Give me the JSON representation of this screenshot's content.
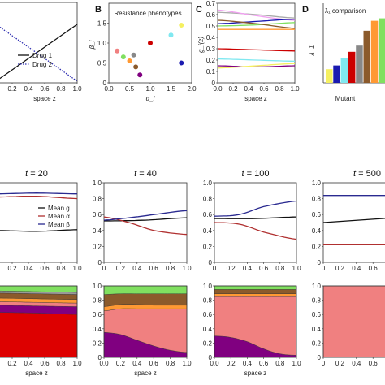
{
  "panel_letters": [
    "B",
    "C",
    "D"
  ],
  "chart_data": [
    {
      "id": "A",
      "type": "line",
      "xlabel": "space z",
      "xlim": [
        0,
        1
      ],
      "x_ticks": [
        "0.2",
        "0.4",
        "0.6",
        "0.8",
        "1.0"
      ],
      "series": [
        {
          "name": "Drug 1",
          "style": "solid",
          "color": "#111111",
          "x": [
            0,
            1
          ],
          "y": [
            0.0,
            1.0
          ]
        },
        {
          "name": "Drug 2",
          "style": "dotted",
          "color": "#2c2cb0",
          "x": [
            0,
            1
          ],
          "y": [
            1.0,
            0.0
          ]
        }
      ]
    },
    {
      "id": "B",
      "type": "scatter",
      "annotation": "Resistance phenotypes",
      "xlabel": "α_i",
      "ylabel": "β_i",
      "xlim": [
        0,
        2
      ],
      "ylim": [
        0,
        2
      ],
      "x_ticks": [
        "0.0",
        "0.5",
        "1.0",
        "1.5",
        "2.0"
      ],
      "y_ticks": [
        "0",
        "0.5",
        "1.0",
        "1.5"
      ],
      "points": [
        {
          "x": 0.2,
          "y": 0.8,
          "color": "#f08080"
        },
        {
          "x": 0.35,
          "y": 0.65,
          "color": "#80e060"
        },
        {
          "x": 0.5,
          "y": 0.55,
          "color": "#ff9933"
        },
        {
          "x": 0.6,
          "y": 0.7,
          "color": "#888888"
        },
        {
          "x": 0.65,
          "y": 0.4,
          "color": "#8b5a2b"
        },
        {
          "x": 0.75,
          "y": 0.2,
          "color": "#800080"
        },
        {
          "x": 1.0,
          "y": 1.0,
          "color": "#cc0000"
        },
        {
          "x": 1.5,
          "y": 1.2,
          "color": "#80e8f0"
        },
        {
          "x": 1.75,
          "y": 0.5,
          "color": "#1a1ab0"
        },
        {
          "x": 1.75,
          "y": 1.45,
          "color": "#f5f060"
        }
      ]
    },
    {
      "id": "C",
      "type": "line",
      "xlabel": "space z",
      "ylabel": "g_i(z)",
      "xlim": [
        0,
        1
      ],
      "ylim": [
        0,
        0.7
      ],
      "x_ticks": [
        "0.0",
        "0.2",
        "0.4",
        "0.6",
        "0.8",
        "1.0"
      ],
      "y_ticks": [
        "0",
        "0.1",
        "0.2",
        "0.3",
        "0.4",
        "0.5",
        "0.6",
        "0.7"
      ],
      "series": [
        {
          "color": "#aaaaaa",
          "x": [
            0,
            0.5,
            1
          ],
          "y": [
            0.62,
            0.6,
            0.57
          ]
        },
        {
          "color": "#f0a0f0",
          "x": [
            0,
            0.5,
            1
          ],
          "y": [
            0.64,
            0.59,
            0.55
          ]
        },
        {
          "color": "#1a1ab0",
          "x": [
            0,
            0.5,
            1
          ],
          "y": [
            0.52,
            0.54,
            0.56
          ]
        },
        {
          "color": "#80e060",
          "x": [
            0,
            0.5,
            1
          ],
          "y": [
            0.5,
            0.51,
            0.53
          ]
        },
        {
          "color": "#8b5a2b",
          "x": [
            0,
            0.5,
            1
          ],
          "y": [
            0.55,
            0.52,
            0.48
          ]
        },
        {
          "color": "#ff9933",
          "x": [
            0,
            0.5,
            1
          ],
          "y": [
            0.47,
            0.47,
            0.47
          ]
        },
        {
          "color": "#cc0000",
          "x": [
            0,
            0.5,
            1
          ],
          "y": [
            0.3,
            0.29,
            0.28
          ]
        },
        {
          "color": "#80e8f0",
          "x": [
            0,
            0.5,
            1
          ],
          "y": [
            0.21,
            0.2,
            0.19
          ]
        },
        {
          "color": "#800080",
          "x": [
            0,
            0.5,
            1
          ],
          "y": [
            0.15,
            0.14,
            0.15
          ]
        },
        {
          "color": "#f5f060",
          "x": [
            0,
            0.5,
            1
          ],
          "y": [
            0.13,
            0.15,
            0.17
          ]
        }
      ]
    },
    {
      "id": "D",
      "type": "bar",
      "title": "λ₁ comparison",
      "xlabel": "Mutant",
      "ylabel": "λ_1",
      "values": [
        0.11,
        0.14,
        0.2,
        0.25,
        0.3,
        0.42,
        0.5,
        0.52
      ],
      "colors": [
        "#f5f060",
        "#1a1ab0",
        "#80e8f0",
        "#cc0000",
        "#888888",
        "#8b5a2b",
        "#ff9933",
        "#80e060"
      ],
      "ylim": [
        0,
        0.55
      ]
    },
    {
      "id": "t20",
      "type": "line",
      "title_prefix": "t",
      "title_value": "= 20",
      "xlabel": "space z",
      "xlim": [
        0,
        1
      ],
      "ylim": [
        0,
        1
      ],
      "x_ticks": [
        "0.2",
        "0.4",
        "0.6",
        "0.8",
        "1.0"
      ],
      "legend": [
        "Mean g",
        "Mean α",
        "Mean β"
      ],
      "series": [
        {
          "name": "Mean g",
          "color": "#111111",
          "x": [
            0,
            0.5,
            1
          ],
          "y": [
            0.4,
            0.39,
            0.41
          ]
        },
        {
          "name": "Mean α",
          "color": "#b03030",
          "x": [
            0,
            0.5,
            1
          ],
          "y": [
            0.82,
            0.83,
            0.8
          ]
        },
        {
          "name": "Mean β",
          "color": "#2a2a90",
          "x": [
            0,
            0.5,
            1
          ],
          "y": [
            0.86,
            0.87,
            0.86
          ]
        }
      ]
    },
    {
      "id": "t40",
      "type": "line",
      "title_prefix": "t",
      "title_value": "= 40",
      "xlim": [
        0,
        1
      ],
      "ylim": [
        0,
        1
      ],
      "x_ticks": [
        "0",
        "0.2",
        "0.4",
        "0.6",
        "0.8",
        "1.0"
      ],
      "y_ticks": [
        "0",
        "0.2",
        "0.4",
        "0.6",
        "0.8",
        "1.0"
      ],
      "series": [
        {
          "name": "Mean g",
          "color": "#111111",
          "x": [
            0,
            0.5,
            1
          ],
          "y": [
            0.52,
            0.53,
            0.56
          ]
        },
        {
          "name": "Mean α",
          "color": "#b03030",
          "x": [
            0,
            0.3,
            0.6,
            1
          ],
          "y": [
            0.57,
            0.5,
            0.4,
            0.35
          ]
        },
        {
          "name": "Mean β",
          "color": "#2a2a90",
          "x": [
            0,
            0.3,
            0.6,
            1
          ],
          "y": [
            0.53,
            0.56,
            0.6,
            0.65
          ]
        }
      ]
    },
    {
      "id": "t100",
      "type": "line",
      "title_prefix": "t",
      "title_value": "= 100",
      "xlim": [
        0,
        1
      ],
      "ylim": [
        0,
        1
      ],
      "x_ticks": [
        "0",
        "0.2",
        "0.4",
        "0.6",
        "0.8",
        "1.0"
      ],
      "y_ticks": [
        "0",
        "0.2",
        "0.4",
        "0.6",
        "0.8",
        "1.0"
      ],
      "series": [
        {
          "name": "Mean g",
          "color": "#111111",
          "x": [
            0,
            0.5,
            1
          ],
          "y": [
            0.55,
            0.55,
            0.57
          ]
        },
        {
          "name": "Mean α",
          "color": "#b03030",
          "x": [
            0,
            0.3,
            0.6,
            1
          ],
          "y": [
            0.5,
            0.48,
            0.38,
            0.29
          ]
        },
        {
          "name": "Mean β",
          "color": "#2a2a90",
          "x": [
            0,
            0.3,
            0.6,
            1
          ],
          "y": [
            0.58,
            0.6,
            0.7,
            0.77
          ]
        }
      ]
    },
    {
      "id": "t500",
      "type": "line",
      "title_prefix": "t",
      "title_value": "= 500",
      "xlim": [
        0,
        1
      ],
      "ylim": [
        0,
        1
      ],
      "x_ticks": [
        "0",
        "0.2",
        "0.4",
        "0.6"
      ],
      "y_ticks": [
        "0",
        "0.2",
        "0.4",
        "0.6",
        "0.8",
        "1.0"
      ],
      "series": [
        {
          "name": "Mean g",
          "color": "#111111",
          "x": [
            0,
            1
          ],
          "y": [
            0.5,
            0.57
          ]
        },
        {
          "name": "Mean α",
          "color": "#b03030",
          "x": [
            0,
            1
          ],
          "y": [
            0.22,
            0.22
          ]
        },
        {
          "name": "Mean β",
          "color": "#2a2a90",
          "x": [
            0,
            1
          ],
          "y": [
            0.84,
            0.84
          ]
        }
      ]
    },
    {
      "id": "s20",
      "type": "area",
      "xlabel": "space z",
      "x_ticks": [
        "0.2",
        "0.4",
        "0.6",
        "0.8",
        "1.0"
      ],
      "x": [
        0,
        0.5,
        1
      ],
      "layers": [
        {
          "color": "#dd0000",
          "values": [
            0.63,
            0.62,
            0.6
          ]
        },
        {
          "color": "#800080",
          "values": [
            0.1,
            0.1,
            0.11
          ]
        },
        {
          "color": "#f08080",
          "values": [
            0.05,
            0.05,
            0.05
          ]
        },
        {
          "color": "#ff9933",
          "values": [
            0.05,
            0.05,
            0.05
          ]
        },
        {
          "color": "#8b5a2b",
          "values": [
            0.07,
            0.07,
            0.07
          ]
        },
        {
          "color": "#999999",
          "values": [
            0.03,
            0.03,
            0.03
          ]
        },
        {
          "color": "#80e060",
          "values": [
            0.07,
            0.08,
            0.09
          ]
        }
      ]
    },
    {
      "id": "s40",
      "type": "area",
      "xlabel": "space z",
      "x_ticks": [
        "0.0",
        "0.2",
        "0.4",
        "0.6",
        "0.8",
        "1.0"
      ],
      "y_ticks": [
        "0",
        "0.2",
        "0.4",
        "0.6",
        "0.8",
        "1.0"
      ],
      "x": [
        0,
        0.2,
        0.4,
        0.6,
        0.8,
        1
      ],
      "layers": [
        {
          "color": "#800080",
          "values": [
            0.35,
            0.32,
            0.24,
            0.16,
            0.1,
            0.07
          ]
        },
        {
          "color": "#f08080",
          "values": [
            0.3,
            0.36,
            0.44,
            0.52,
            0.58,
            0.61
          ]
        },
        {
          "color": "#ff9933",
          "values": [
            0.06,
            0.06,
            0.06,
            0.05,
            0.05,
            0.05
          ]
        },
        {
          "color": "#8b5a2b",
          "values": [
            0.17,
            0.15,
            0.15,
            0.16,
            0.16,
            0.16
          ]
        },
        {
          "color": "#80e060",
          "values": [
            0.12,
            0.11,
            0.11,
            0.11,
            0.11,
            0.11
          ]
        }
      ]
    },
    {
      "id": "s100",
      "type": "area",
      "xlabel": "space z",
      "x_ticks": [
        "0.0",
        "0.2",
        "0.4",
        "0.6",
        "0.8",
        "1.0"
      ],
      "y_ticks": [
        "0",
        "0.2",
        "0.4",
        "0.6",
        "0.8",
        "1.0"
      ],
      "x": [
        0,
        0.2,
        0.4,
        0.6,
        0.8,
        1
      ],
      "layers": [
        {
          "color": "#800080",
          "values": [
            0.3,
            0.28,
            0.22,
            0.12,
            0.05,
            0.03
          ]
        },
        {
          "color": "#f08080",
          "values": [
            0.55,
            0.57,
            0.63,
            0.73,
            0.8,
            0.82
          ]
        },
        {
          "color": "#ff9933",
          "values": [
            0.04,
            0.04,
            0.04,
            0.04,
            0.04,
            0.04
          ]
        },
        {
          "color": "#8b5a2b",
          "values": [
            0.06,
            0.06,
            0.06,
            0.06,
            0.06,
            0.06
          ]
        },
        {
          "color": "#80e060",
          "values": [
            0.05,
            0.05,
            0.05,
            0.05,
            0.05,
            0.05
          ]
        }
      ]
    },
    {
      "id": "s500",
      "type": "area",
      "x_ticks": [
        "0",
        "0.2",
        "0.4",
        "0.6"
      ],
      "y_ticks": [
        "0",
        "0.2",
        "0.4",
        "0.6",
        "0.8",
        "1.0"
      ],
      "x": [
        0,
        1
      ],
      "layers": [
        {
          "color": "#f08080",
          "values": [
            1.0,
            1.0
          ]
        }
      ]
    }
  ]
}
